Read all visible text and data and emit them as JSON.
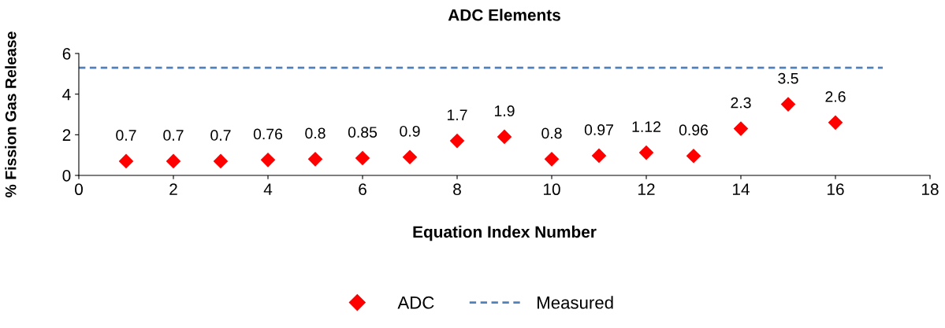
{
  "chart_data": {
    "type": "scatter",
    "title": "ADC Elements",
    "xlabel": "Equation Index Number",
    "ylabel": "% Fission Gas Release",
    "xlim": [
      0,
      18
    ],
    "xticks": [
      0,
      2,
      4,
      6,
      8,
      10,
      12,
      14,
      16,
      18
    ],
    "ylim": [
      0,
      6
    ],
    "yticks": [
      0,
      2,
      4,
      6
    ],
    "grid": false,
    "legend": "bottom",
    "series": [
      {
        "name": "ADC",
        "marker": "diamond",
        "color": "#ff0000",
        "x": [
          1,
          2,
          3,
          4,
          5,
          6,
          7,
          8,
          9,
          10,
          11,
          12,
          13,
          14,
          15,
          16
        ],
        "values": [
          0.7,
          0.7,
          0.7,
          0.76,
          0.8,
          0.85,
          0.9,
          1.7,
          1.9,
          0.8,
          0.97,
          1.12,
          0.96,
          2.3,
          3.5,
          2.6
        ],
        "value_labels": [
          "0.7",
          "0.7",
          "0.7",
          "0.76",
          "0.8",
          "0.85",
          "0.9",
          "1.7",
          "1.9",
          "0.8",
          "0.97",
          "1.12",
          "0.96",
          "2.3",
          "3.5",
          "2.6"
        ]
      },
      {
        "name": "Measured",
        "type": "line",
        "marker": "none",
        "line_style": "dashed",
        "color": "#4f81bd",
        "x": [
          0,
          17
        ],
        "values": [
          5.3,
          5.3
        ]
      }
    ]
  }
}
